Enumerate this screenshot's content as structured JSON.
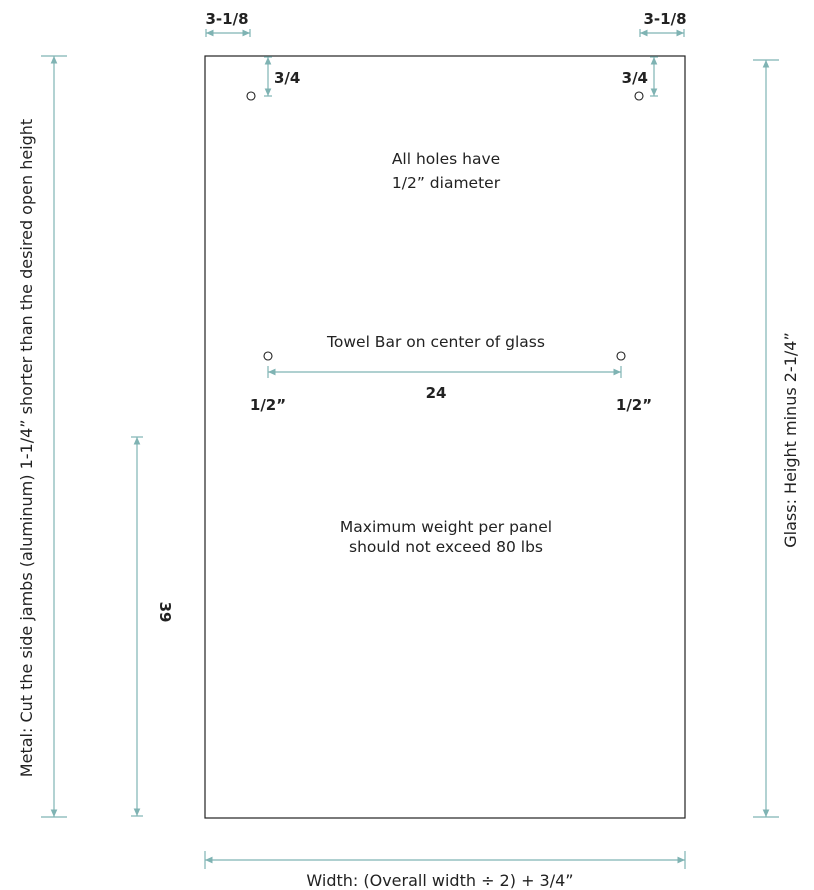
{
  "labels": {
    "top_left_offset": "3-1/8",
    "top_right_offset": "3-1/8",
    "left_hole_drop": "3/4",
    "right_hole_drop": "3/4",
    "hole_note_line1": "All holes have",
    "hole_note_line2": "1/2” diameter",
    "towel_bar_title": "Towel Bar on center of glass",
    "towel_bar_spacing": "24",
    "towel_left_offset": "1/2”",
    "towel_right_offset": "1/2”",
    "weight_note_line1": "Maximum weight per panel",
    "weight_note_line2": "should not exceed 80 lbs",
    "lower_dimension": "39",
    "left_side_label": "Metal: Cut the side jambs (aluminum) 1-1/4” shorter than the desired open height",
    "right_side_label": "Glass: Height minus 2-1/4”",
    "bottom_label": "Width: (Overall width ÷ 2) + 3/4”"
  },
  "colors": {
    "dimension_line": "#7fb3b3",
    "outline": "#222222",
    "background": "#ffffff"
  }
}
